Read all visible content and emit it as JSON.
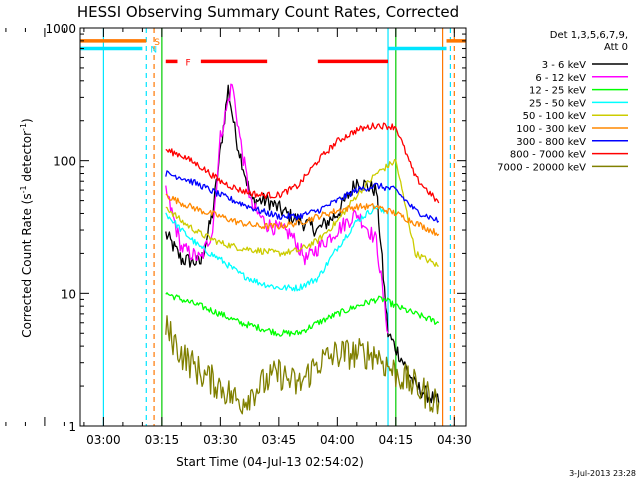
{
  "chart_data": {
    "type": "line",
    "title": "HESSI Observing Summary Count Rates, Corrected",
    "xlabel": "Start Time (04-Jul-13 02:54:02)",
    "ylabel": "Corrected Count Rate (s⁻¹ detector⁻¹)",
    "ylabel_main": "Corrected Count Rate (s",
    "ylabel_exp1": "-1",
    "ylabel_mid": " detector",
    "ylabel_exp2": "-1",
    "ylabel_end": ")",
    "y_scale": "log",
    "ylim": [
      1,
      1000
    ],
    "xlim": [
      "02:54",
      "04:33"
    ],
    "x_ticks": [
      "03:00",
      "03:15",
      "03:30",
      "03:45",
      "04:00",
      "04:15",
      "04:30"
    ],
    "y_ticks": [
      "1",
      "10",
      "100",
      "1000"
    ],
    "grid": false,
    "legend_placement": "right",
    "legend_title_1": "Det 1,3,5,6,7,9,",
    "legend_title_2": "Att 0",
    "footer_timestamp": "3-Jul-2013 23:28",
    "flag_letters": [
      "S",
      "N",
      "F"
    ],
    "series": [
      {
        "name": "3 - 6 keV",
        "color": "#000000",
        "x": [
          "03:16",
          "03:20",
          "03:25",
          "03:28",
          "03:32",
          "03:34",
          "03:38",
          "03:42",
          "03:48",
          "03:55",
          "04:00",
          "04:05",
          "04:10",
          "04:13",
          "04:17",
          "04:20",
          "04:26"
        ],
        "y": [
          28,
          18,
          17,
          40,
          350,
          150,
          50,
          50,
          38,
          30,
          40,
          70,
          60,
          5,
          3,
          2,
          1.5
        ]
      },
      {
        "name": "6 - 12 keV",
        "color": "#ff00ff",
        "x": [
          "03:16",
          "03:20",
          "03:25",
          "03:28",
          "03:30",
          "03:33",
          "03:35",
          "03:38",
          "03:42",
          "03:48",
          "03:52",
          "03:55",
          "04:00",
          "04:05",
          "04:10",
          "04:13"
        ],
        "y": [
          60,
          22,
          18,
          30,
          150,
          380,
          150,
          45,
          33,
          28,
          18,
          22,
          30,
          40,
          25,
          5
        ]
      },
      {
        "name": "12 - 25 keV",
        "color": "#00ff00",
        "x": [
          "03:16",
          "03:20",
          "03:25",
          "03:30",
          "03:35",
          "03:40",
          "03:45",
          "03:50",
          "03:55",
          "04:00",
          "04:05",
          "04:10",
          "04:12",
          "04:15",
          "04:20",
          "04:26"
        ],
        "y": [
          10,
          9,
          8,
          7,
          6,
          5.5,
          5,
          5,
          6,
          7,
          8,
          9,
          9,
          8,
          7,
          6
        ]
      },
      {
        "name": "25 - 50 keV",
        "color": "#00ffff",
        "x": [
          "03:16",
          "03:20",
          "03:25",
          "03:30",
          "03:35",
          "03:40",
          "03:45",
          "03:50",
          "03:55",
          "04:00",
          "04:05",
          "04:10",
          "04:12"
        ],
        "y": [
          40,
          30,
          22,
          18,
          14,
          12,
          11,
          11,
          13,
          22,
          35,
          45,
          40
        ]
      },
      {
        "name": "50 - 100 keV",
        "color": "#cccc00",
        "x": [
          "03:16",
          "03:20",
          "03:25",
          "03:30",
          "03:35",
          "03:40",
          "03:45",
          "03:50",
          "03:55",
          "04:00",
          "04:05",
          "04:10",
          "04:15",
          "04:20",
          "04:26"
        ],
        "y": [
          45,
          35,
          28,
          24,
          22,
          21,
          20,
          21,
          25,
          35,
          55,
          80,
          100,
          20,
          16
        ]
      },
      {
        "name": "100 - 300 keV",
        "color": "#ff8800",
        "x": [
          "03:16",
          "03:20",
          "03:25",
          "03:30",
          "03:35",
          "03:40",
          "03:45",
          "03:50",
          "03:55",
          "04:00",
          "04:05",
          "04:10",
          "04:15",
          "04:20",
          "04:26"
        ],
        "y": [
          55,
          48,
          42,
          38,
          34,
          32,
          32,
          34,
          38,
          42,
          45,
          45,
          40,
          34,
          28
        ]
      },
      {
        "name": "300 - 800 keV",
        "color": "#0000ff",
        "x": [
          "03:16",
          "03:20",
          "03:25",
          "03:30",
          "03:35",
          "03:40",
          "03:45",
          "03:50",
          "03:55",
          "04:00",
          "04:05",
          "04:10",
          "04:15",
          "04:20",
          "04:26"
        ],
        "y": [
          80,
          75,
          65,
          55,
          48,
          42,
          38,
          38,
          42,
          50,
          60,
          65,
          60,
          42,
          35
        ]
      },
      {
        "name": "800 - 7000 keV",
        "color": "#ff0000",
        "x": [
          "03:16",
          "03:20",
          "03:25",
          "03:30",
          "03:35",
          "03:40",
          "03:45",
          "03:50",
          "03:55",
          "04:00",
          "04:05",
          "04:10",
          "04:15",
          "04:20",
          "04:26"
        ],
        "y": [
          120,
          110,
          90,
          70,
          60,
          55,
          55,
          65,
          100,
          140,
          170,
          185,
          180,
          75,
          48
        ]
      },
      {
        "name": "7000 - 20000 keV",
        "color": "#808000",
        "x": [
          "03:16",
          "03:20",
          "03:25",
          "03:30",
          "03:35",
          "03:40",
          "03:45",
          "03:50",
          "03:55",
          "04:00",
          "04:05",
          "04:10",
          "04:12",
          "04:15",
          "04:20",
          "04:26"
        ],
        "y": [
          5.5,
          3.5,
          2.5,
          2,
          1.5,
          2,
          2.5,
          2,
          3,
          3.5,
          3.5,
          3.5,
          3,
          2.5,
          2,
          1.5
        ]
      }
    ],
    "markers": {
      "saa_flag": {
        "label": "S",
        "color": "#ff7700",
        "value_level": 800,
        "intervals": [
          [
            "02:54",
            "03:11"
          ],
          [
            "04:28",
            "04:33"
          ]
        ]
      },
      "night_flag": {
        "label": "N",
        "color": "#00e5ff",
        "value_level": 700,
        "intervals": [
          [
            "02:54",
            "03:10"
          ],
          [
            "04:13",
            "04:28"
          ]
        ]
      },
      "flare_flag": {
        "label": "F",
        "color": "#ff0000",
        "value_level": 560,
        "intervals": [
          [
            "03:16",
            "03:19"
          ],
          [
            "03:25",
            "03:42"
          ],
          [
            "03:55",
            "04:13"
          ]
        ]
      },
      "vertical_lines": [
        {
          "time": "03:00",
          "color": "#00e5ff",
          "style": "solid"
        },
        {
          "time": "03:11",
          "color": "#00e5ff",
          "style": "dashed"
        },
        {
          "time": "03:13",
          "color": "#ff7700",
          "style": "dashed"
        },
        {
          "time": "03:15",
          "color": "#00cc00",
          "style": "solid"
        },
        {
          "time": "04:13",
          "color": "#00e5ff",
          "style": "solid"
        },
        {
          "time": "04:15",
          "color": "#00cc00",
          "style": "solid"
        },
        {
          "time": "04:27",
          "color": "#ff7700",
          "style": "solid"
        },
        {
          "time": "04:29",
          "color": "#00e5ff",
          "style": "dashed"
        },
        {
          "time": "04:30",
          "color": "#ff7700",
          "style": "dashed"
        }
      ]
    }
  }
}
